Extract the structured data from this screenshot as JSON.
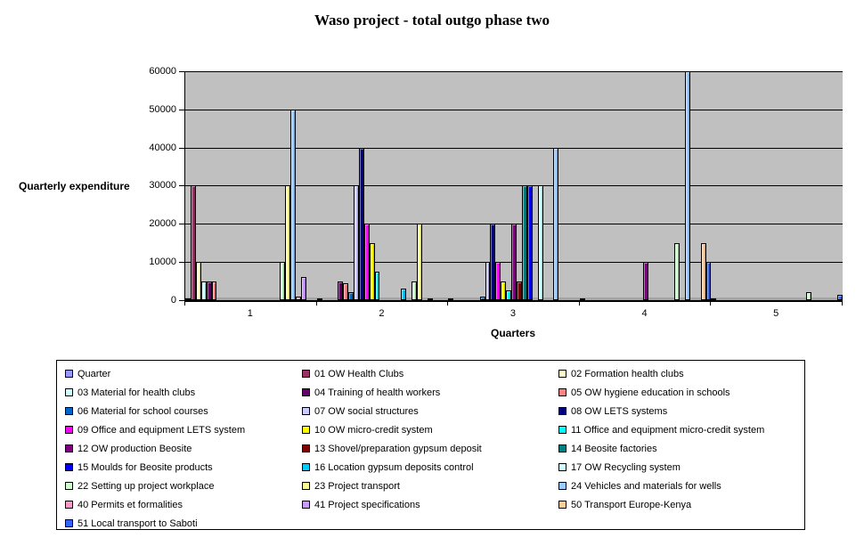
{
  "chart_data": {
    "type": "bar",
    "title": "Waso project - total outgo phase two",
    "xlabel": "Quarters",
    "ylabel": "Quarterly expenditure",
    "categories": [
      "1",
      "2",
      "3",
      "4",
      "5"
    ],
    "ylim": [
      0,
      60000
    ],
    "ytick_interval": 10000,
    "yticks": [
      0,
      10000,
      20000,
      30000,
      40000,
      50000,
      60000
    ],
    "grid": true,
    "plot_background": "#C0C0C0",
    "gridline_color": "#000000",
    "legend_position": "bottom",
    "legend_columns": 3,
    "series": [
      {
        "name": "Quarter",
        "color": "#9999FF",
        "values": [
          1,
          2,
          3,
          4,
          5
        ]
      },
      {
        "name": "01 OW Health Clubs",
        "color": "#993366",
        "values": [
          30000,
          0,
          0,
          0,
          0
        ]
      },
      {
        "name": "02 Formation health clubs",
        "color": "#FFFFCC",
        "values": [
          10000,
          0,
          0,
          0,
          0
        ]
      },
      {
        "name": "03 Material for health clubs",
        "color": "#CCFFFF",
        "values": [
          5000,
          0,
          0,
          0,
          0
        ]
      },
      {
        "name": "04 Training of health workers",
        "color": "#660066",
        "values": [
          5000,
          5000,
          0,
          0,
          0
        ]
      },
      {
        "name": "05 OW hygiene education in schools",
        "color": "#FF8080",
        "values": [
          5000,
          4500,
          0,
          0,
          0
        ]
      },
      {
        "name": "06 Material for school courses",
        "color": "#0066CC",
        "values": [
          0,
          2000,
          1000,
          0,
          0
        ]
      },
      {
        "name": "07 OW social structures",
        "color": "#CCCCFF",
        "values": [
          0,
          30000,
          10000,
          0,
          0
        ]
      },
      {
        "name": "08 OW LETS systems",
        "color": "#000080",
        "values": [
          0,
          40000,
          20000,
          0,
          0
        ]
      },
      {
        "name": "09 Office and equipment LETS system",
        "color": "#FF00FF",
        "values": [
          0,
          20000,
          10000,
          0,
          0
        ]
      },
      {
        "name": "10 OW micro-credit system",
        "color": "#FFFF00",
        "values": [
          0,
          15000,
          5000,
          0,
          0
        ]
      },
      {
        "name": "11 Office and equipment micro-credit system",
        "color": "#00FFFF",
        "values": [
          0,
          7500,
          2500,
          0,
          0
        ]
      },
      {
        "name": "12 OW  production Beosite",
        "color": "#800080",
        "values": [
          0,
          0,
          20000,
          10000,
          0
        ]
      },
      {
        "name": "13 Shovel/preparation gypsum deposit",
        "color": "#800000",
        "values": [
          0,
          0,
          5000,
          0,
          0
        ]
      },
      {
        "name": "14 Beosite factories",
        "color": "#008080",
        "values": [
          0,
          0,
          30000,
          0,
          0
        ]
      },
      {
        "name": "15 Moulds for Beosite products",
        "color": "#0000FF",
        "values": [
          0,
          0,
          30000,
          0,
          0
        ]
      },
      {
        "name": "16 Location gypsum deposits control",
        "color": "#00CCFF",
        "values": [
          0,
          3000,
          0,
          0,
          0
        ]
      },
      {
        "name": "17 OW Recycling system",
        "color": "#CCFFFF",
        "values": [
          0,
          0,
          30000,
          0,
          0
        ]
      },
      {
        "name": "22 Setting up project workplace",
        "color": "#CCFFCC",
        "values": [
          10000,
          5000,
          0,
          15000,
          2000
        ]
      },
      {
        "name": "23 Project transport",
        "color": "#FFFF99",
        "values": [
          30000,
          20000,
          0,
          0,
          0
        ]
      },
      {
        "name": "24 Vehicles and materials for wells",
        "color": "#99CCFF",
        "values": [
          50000,
          0,
          40000,
          60000,
          0
        ]
      },
      {
        "name": "40 Permits et formalities",
        "color": "#FF99CC",
        "values": [
          1000,
          500,
          0,
          0,
          0
        ]
      },
      {
        "name": "41 Project specifications",
        "color": "#CC99FF",
        "values": [
          6000,
          0,
          0,
          0,
          0
        ]
      },
      {
        "name": "50 Transport Europe-Kenya",
        "color": "#FFCC99",
        "values": [
          0,
          0,
          0,
          15000,
          0
        ]
      },
      {
        "name": "51 Local transport to Saboti",
        "color": "#3366FF",
        "values": [
          0,
          0,
          0,
          10000,
          1500
        ]
      }
    ]
  }
}
